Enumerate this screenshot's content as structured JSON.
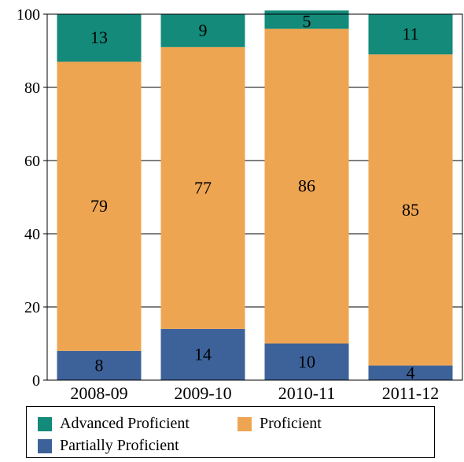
{
  "chart_data": {
    "type": "bar",
    "stacked": true,
    "categories": [
      "2008-09",
      "2009-10",
      "2010-11",
      "2011-12"
    ],
    "series": [
      {
        "name": "Partially Proficient",
        "color": "#3d6299",
        "values": [
          8,
          14,
          10,
          4
        ]
      },
      {
        "name": "Proficient",
        "color": "#eea552",
        "values": [
          79,
          77,
          86,
          85
        ]
      },
      {
        "name": "Advanced Proficient",
        "color": "#138a7a",
        "values": [
          13,
          9,
          5,
          11
        ]
      }
    ],
    "ylim": [
      0,
      100
    ],
    "yticks": [
      0,
      20,
      40,
      60,
      80,
      100
    ],
    "grid": true,
    "legend_position": "bottom"
  },
  "legend": {
    "items": [
      {
        "label": "Advanced Proficient",
        "color": "#138a7a"
      },
      {
        "label": "Proficient",
        "color": "#eea552"
      },
      {
        "label": "Partially Proficient",
        "color": "#3d6299"
      }
    ]
  }
}
